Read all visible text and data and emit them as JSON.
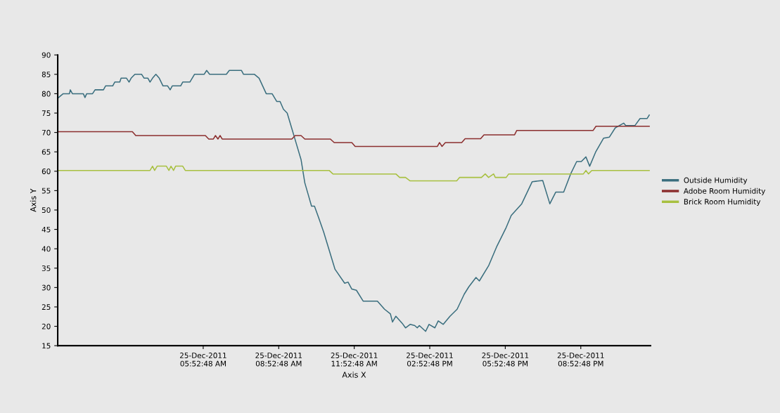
{
  "chart_data": {
    "type": "line",
    "xlabel": "Axis X",
    "ylabel": "Axis Y",
    "xlim": [
      "2011-12-25T00:06",
      "2011-12-25T23:39"
    ],
    "ylim": [
      15,
      90
    ],
    "xticks": [
      {
        "value": "2011-12-25T05:52:48",
        "label": "25-Dec-2011\n05:52:48 AM"
      },
      {
        "value": "2011-12-25T08:52:48",
        "label": "25-Dec-2011\n08:52:48 AM"
      },
      {
        "value": "2011-12-25T11:52:48",
        "label": "25-Dec-2011\n11:52:48 AM"
      },
      {
        "value": "2011-12-25T14:52:48",
        "label": "25-Dec-2011\n02:52:48 PM"
      },
      {
        "value": "2011-12-25T17:52:48",
        "label": "25-Dec-2011\n05:52:48 PM"
      },
      {
        "value": "2011-12-25T20:52:48",
        "label": "25-Dec-2011\n08:52:48 PM"
      }
    ],
    "yticks": [
      15,
      20,
      25,
      30,
      35,
      40,
      45,
      50,
      55,
      60,
      65,
      70,
      75,
      80,
      85,
      90
    ],
    "grid": false,
    "legend": "right",
    "marker": "none",
    "line_style": "solid",
    "series": [
      {
        "name": "Outside Humidity",
        "color": "#3a6e7e",
        "x": [
          "2011-12-25T00:08",
          "2011-12-25T00:19",
          "2011-12-25T00:34",
          "2011-12-25T00:36",
          "2011-12-25T00:41",
          "2011-12-25T01:07",
          "2011-12-25T01:11",
          "2011-12-25T01:15",
          "2011-12-25T01:29",
          "2011-12-25T01:35",
          "2011-12-25T01:55",
          "2011-12-25T02:00",
          "2011-12-25T02:17",
          "2011-12-25T02:22",
          "2011-12-25T02:34",
          "2011-12-25T02:37",
          "2011-12-25T02:50",
          "2011-12-25T02:56",
          "2011-12-25T03:01",
          "2011-12-25T03:10",
          "2011-12-25T03:26",
          "2011-12-25T03:32",
          "2011-12-25T03:41",
          "2011-12-25T03:46",
          "2011-12-25T03:52",
          "2011-12-25T04:00",
          "2011-12-25T04:08",
          "2011-12-25T04:17",
          "2011-12-25T04:28",
          "2011-12-25T04:34",
          "2011-12-25T04:39",
          "2011-12-25T04:59",
          "2011-12-25T05:04",
          "2011-12-25T05:21",
          "2011-12-25T05:32",
          "2011-12-25T05:55",
          "2011-12-25T06:01",
          "2011-12-25T06:08",
          "2011-12-25T06:48",
          "2011-12-25T06:55",
          "2011-12-25T07:24",
          "2011-12-25T07:29",
          "2011-12-25T07:55",
          "2011-12-25T08:06",
          "2011-12-25T08:23",
          "2011-12-25T08:37",
          "2011-12-25T08:48",
          "2011-12-25T08:56",
          "2011-12-25T09:04",
          "2011-12-25T09:13",
          "2011-12-25T09:24",
          "2011-12-25T09:35",
          "2011-12-25T09:46",
          "2011-12-25T09:55",
          "2011-12-25T10:03",
          "2011-12-25T10:11",
          "2011-12-25T10:18",
          "2011-12-25T10:28",
          "2011-12-25T10:40",
          "2011-12-25T11:07",
          "2011-12-25T11:30",
          "2011-12-25T11:38",
          "2011-12-25T11:47",
          "2011-12-25T11:58",
          "2011-12-25T12:14",
          "2011-12-25T12:48",
          "2011-12-25T13:05",
          "2011-12-25T13:19",
          "2011-12-25T13:24",
          "2011-12-25T13:32",
          "2011-12-25T13:47",
          "2011-12-25T13:55",
          "2011-12-25T14:06",
          "2011-12-25T14:17",
          "2011-12-25T14:23",
          "2011-12-25T14:28",
          "2011-12-25T14:43",
          "2011-12-25T14:51",
          "2011-12-25T15:05",
          "2011-12-25T15:13",
          "2011-12-25T15:25",
          "2011-12-25T15:41",
          "2011-12-25T15:58",
          "2011-12-25T16:15",
          "2011-12-25T16:26",
          "2011-12-25T16:43",
          "2011-12-25T16:51",
          "2011-12-25T17:13",
          "2011-12-25T17:33",
          "2011-12-25T17:55",
          "2011-12-25T18:07",
          "2011-12-25T18:32",
          "2011-12-25T18:57",
          "2011-12-25T19:22",
          "2011-12-25T19:39",
          "2011-12-25T19:53",
          "2011-12-25T20:12",
          "2011-12-25T20:29",
          "2011-12-25T20:43",
          "2011-12-25T20:54",
          "2011-12-25T21:05",
          "2011-12-25T21:14",
          "2011-12-25T21:28",
          "2011-12-25T21:47",
          "2011-12-25T22:01",
          "2011-12-25T22:15",
          "2011-12-25T22:35",
          "2011-12-25T22:40",
          "2011-12-25T23:02",
          "2011-12-25T23:14",
          "2011-12-25T23:31",
          "2011-12-25T23:36"
        ],
        "values": [
          79,
          80,
          80,
          81,
          80,
          80,
          79,
          80,
          80,
          81,
          81,
          82,
          82,
          83,
          83,
          84,
          84,
          83,
          84,
          85,
          85,
          84,
          84,
          83,
          84,
          85,
          84,
          82,
          82,
          81,
          82,
          82,
          83,
          83,
          85,
          85,
          86,
          85,
          85,
          86,
          86,
          85,
          85,
          84,
          80,
          80,
          78,
          78,
          76,
          75,
          71,
          67,
          63,
          57,
          54,
          51,
          51,
          48,
          44.3,
          34.7,
          31.1,
          31.4,
          29.6,
          29.3,
          26.5,
          26.5,
          24.4,
          23.2,
          21.1,
          22.6,
          20.8,
          19.6,
          20.5,
          20.2,
          19.6,
          20.2,
          18.7,
          20.5,
          19.6,
          21.4,
          20.5,
          22.6,
          24.4,
          28.3,
          30.2,
          32.6,
          31.7,
          35.6,
          40.7,
          45.5,
          48.6,
          51.6,
          57.3,
          57.6,
          51.6,
          54.6,
          54.6,
          59.4,
          62.5,
          62.5,
          63.7,
          61.3,
          64.9,
          68.5,
          68.8,
          71.2,
          72.4,
          71.8,
          71.8,
          73.6,
          73.6,
          74.5
        ]
      },
      {
        "name": "Adobe Room Humidity",
        "color": "#8b2e2e",
        "x": [
          "2011-12-25T00:08",
          "2011-12-25T03:04",
          "2011-12-25T03:12",
          "2011-12-25T05:58",
          "2011-12-25T06:06",
          "2011-12-25T06:17",
          "2011-12-25T06:22",
          "2011-12-25T06:28",
          "2011-12-25T06:33",
          "2011-12-25T06:38",
          "2011-12-25T09:24",
          "2011-12-25T09:32",
          "2011-12-25T09:46",
          "2011-12-25T09:55",
          "2011-12-25T10:56",
          "2011-12-25T11:05",
          "2011-12-25T11:47",
          "2011-12-25T11:55",
          "2011-12-25T15:11",
          "2011-12-25T15:16",
          "2011-12-25T15:22",
          "2011-12-25T15:30",
          "2011-12-25T16:09",
          "2011-12-25T16:17",
          "2011-12-25T16:54",
          "2011-12-25T17:02",
          "2011-12-25T18:15",
          "2011-12-25T18:20",
          "2011-12-25T21:22",
          "2011-12-25T21:29",
          "2011-12-25T23:36"
        ],
        "values": [
          70.2,
          70.2,
          69.2,
          69.2,
          68.3,
          68.3,
          69.2,
          68.3,
          69.2,
          68.3,
          68.3,
          69.2,
          69.2,
          68.3,
          68.3,
          67.4,
          67.4,
          66.4,
          66.4,
          67.4,
          66.4,
          67.4,
          67.4,
          68.4,
          68.4,
          69.4,
          69.4,
          70.5,
          70.5,
          71.6,
          71.6
        ]
      },
      {
        "name": "Brick Room Humidity",
        "color": "#a8c040",
        "x": [
          "2011-12-25T00:08",
          "2011-12-25T03:46",
          "2011-12-25T03:52",
          "2011-12-25T03:57",
          "2011-12-25T04:03",
          "2011-12-25T04:25",
          "2011-12-25T04:31",
          "2011-12-25T04:36",
          "2011-12-25T04:42",
          "2011-12-25T04:47",
          "2011-12-25T05:04",
          "2011-12-25T05:10",
          "2011-12-25T10:53",
          "2011-12-25T11:02",
          "2011-12-25T13:32",
          "2011-12-25T13:41",
          "2011-12-25T13:55",
          "2011-12-25T14:06",
          "2011-12-25T15:57",
          "2011-12-25T16:04",
          "2011-12-25T16:56",
          "2011-12-25T17:05",
          "2011-12-25T17:13",
          "2011-12-25T17:25",
          "2011-12-25T17:29",
          "2011-12-25T17:55",
          "2011-12-25T18:01",
          "2011-12-25T20:59",
          "2011-12-25T21:05",
          "2011-12-25T21:11",
          "2011-12-25T21:19",
          "2011-12-25T23:36"
        ],
        "values": [
          60.2,
          60.2,
          61.3,
          60.2,
          61.3,
          61.3,
          60.2,
          61.3,
          60.2,
          61.3,
          61.3,
          60.2,
          60.2,
          59.3,
          59.3,
          58.4,
          58.4,
          57.5,
          57.5,
          58.4,
          58.4,
          59.3,
          58.4,
          59.3,
          58.4,
          58.4,
          59.3,
          59.3,
          60.2,
          59.3,
          60.2,
          60.2
        ]
      }
    ]
  }
}
